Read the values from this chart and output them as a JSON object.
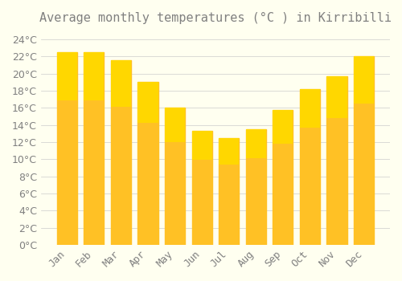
{
  "title": "Average monthly temperatures (°C ) in Kirribilli",
  "months": [
    "Jan",
    "Feb",
    "Mar",
    "Apr",
    "May",
    "Jun",
    "Jul",
    "Aug",
    "Sep",
    "Oct",
    "Nov",
    "Dec"
  ],
  "values": [
    22.5,
    22.5,
    21.5,
    19.0,
    16.0,
    13.3,
    12.5,
    13.5,
    15.7,
    18.2,
    19.7,
    22.0
  ],
  "bar_color_top": "#FFC125",
  "bar_color_bottom": "#FFB300",
  "background_color": "#FFFFF0",
  "grid_color": "#CCCCCC",
  "text_color": "#808080",
  "ylim": [
    0,
    25
  ],
  "yticks": [
    0,
    2,
    4,
    6,
    8,
    10,
    12,
    14,
    16,
    18,
    20,
    22,
    24
  ],
  "title_fontsize": 11,
  "tick_fontsize": 9,
  "bar_width": 0.75
}
